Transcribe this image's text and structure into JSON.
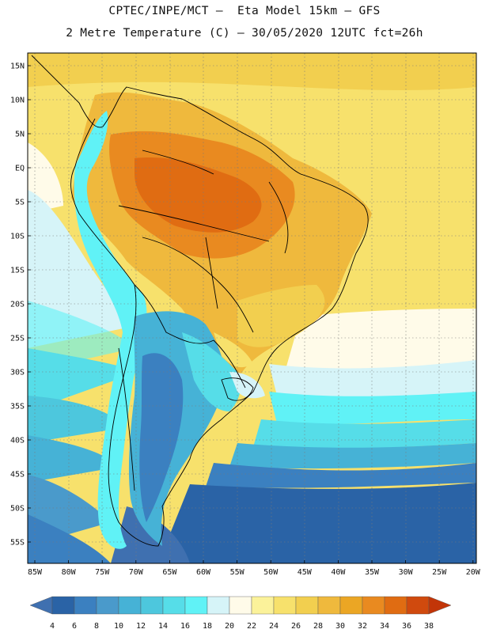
{
  "title_line1": "CPTEC/INPE/MCT –  Eta Model 15km – GFS",
  "title_line2": "2 Metre Temperature (C) – 30/05/2020 12UTC fct=26h",
  "lat_labels": [
    "15N",
    "10N",
    "5N",
    "EQ",
    "5S",
    "10S",
    "15S",
    "20S",
    "25S",
    "30S",
    "35S",
    "40S",
    "45S",
    "50S",
    "55S"
  ],
  "lon_labels": [
    "85W",
    "80W",
    "75W",
    "70W",
    "65W",
    "60W",
    "55W",
    "50W",
    "45W",
    "40W",
    "35W",
    "30W",
    "25W",
    "20W"
  ],
  "colorbar": {
    "tick_labels": [
      "4",
      "6",
      "8",
      "10",
      "12",
      "14",
      "16",
      "18",
      "20",
      "22",
      "24",
      "26",
      "28",
      "30",
      "32",
      "34",
      "36",
      "38"
    ],
    "colors": [
      "#3f70b0",
      "#2a63a6",
      "#3b80c0",
      "#4a9acb",
      "#46b2d6",
      "#4dc7dd",
      "#56dde8",
      "#60f2f6",
      "#d6f4f8",
      "#fffbe9",
      "#fbf29a",
      "#f7e16c",
      "#f2cf4f",
      "#efb93d",
      "#eba624",
      "#e98a20",
      "#e06c12",
      "#d04a0e",
      "#c23508"
    ]
  }
}
